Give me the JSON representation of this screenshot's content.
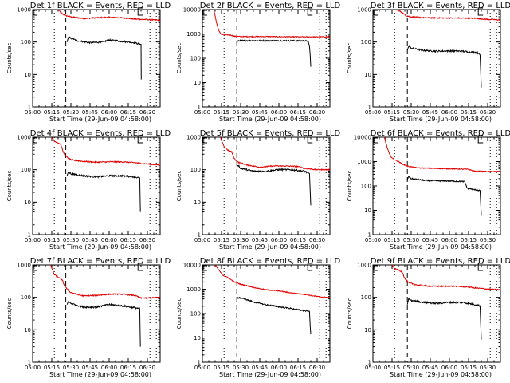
{
  "colors": {
    "events": "#000000",
    "lld": "#e00000",
    "background": "#ffffff",
    "axes": "#000000"
  },
  "common": {
    "xlabel": "Start Time (29-Jun-09 04:58:00)",
    "ylabel": "Counts/sec",
    "xticks": [
      "05:00",
      "05:15",
      "05:30",
      "05:45",
      "06:00",
      "06:15",
      "06:30"
    ],
    "xrange_minutes_from_0500": [
      0,
      100
    ],
    "markers": {
      "S_label": "S",
      "E_label": "E",
      "dotted_lines_min": [
        17,
        92
      ],
      "dotted_end_min": 97
    }
  },
  "chart_data": [
    {
      "type": "line",
      "title": "Det 1f BLACK = Events, RED = LLD",
      "ylim": [
        1,
        1000
      ],
      "yticks": [
        "1",
        "10",
        "100",
        "1000"
      ],
      "xlabel": "Start Time (29-Jun-09 04:58:00)",
      "ylabel": "Counts/sec",
      "dashed_line_min": 26,
      "S_min": 0,
      "E_min": 82,
      "series": [
        {
          "name": "LLD",
          "color": "red",
          "x": [
            20,
            23,
            26,
            30,
            40,
            50,
            60,
            70,
            80,
            90,
            100
          ],
          "values": [
            1000,
            750,
            650,
            600,
            530,
            560,
            580,
            560,
            510,
            490,
            470
          ]
        },
        {
          "name": "Events",
          "color": "black",
          "x": [
            27,
            28,
            35,
            45,
            55,
            60,
            70,
            80,
            84,
            85,
            85.2
          ],
          "values": [
            100,
            140,
            110,
            95,
            100,
            115,
            105,
            95,
            85,
            85,
            7
          ]
        }
      ]
    },
    {
      "type": "line",
      "title": "Det 2f BLACK = Events, RED = LLD",
      "ylim": [
        1,
        10000
      ],
      "yticks": [
        "1",
        "10",
        "100",
        "1000",
        "10000"
      ],
      "xlabel": "Start Time (29-Jun-09 04:58:00)",
      "ylabel": "Counts/sec",
      "dashed_line_min": 27,
      "S_min": 0,
      "E_min": 82,
      "series": [
        {
          "name": "LLD",
          "color": "red",
          "x": [
            9,
            11,
            13,
            15,
            18,
            22,
            25,
            30,
            50,
            70,
            90,
            100
          ],
          "values": [
            10000,
            3000,
            1300,
            950,
            920,
            900,
            800,
            780,
            780,
            760,
            760,
            760
          ]
        },
        {
          "name": "Events",
          "color": "black",
          "x": [
            27,
            27.5,
            28,
            40,
            60,
            80,
            83,
            84,
            84.5,
            85
          ],
          "values": [
            400,
            500,
            530,
            530,
            530,
            520,
            500,
            300,
            150,
            45
          ]
        }
      ]
    },
    {
      "type": "line",
      "title": "Det 3f BLACK = Events, RED = LLD",
      "ylim": [
        1,
        1000
      ],
      "yticks": [
        "1",
        "10",
        "100",
        "1000"
      ],
      "xlabel": "Start Time (29-Jun-09 04:58:00)",
      "ylabel": "Counts/sec",
      "dashed_line_min": 27,
      "S_min": 0,
      "E_min": 82,
      "series": [
        {
          "name": "LLD",
          "color": "red",
          "x": [
            17,
            20,
            23,
            26,
            30,
            40,
            60,
            80,
            90,
            100
          ],
          "values": [
            1000,
            950,
            800,
            650,
            600,
            560,
            550,
            540,
            500,
            480
          ]
        },
        {
          "name": "Events",
          "color": "black",
          "x": [
            27,
            28,
            30,
            40,
            50,
            60,
            70,
            80,
            83,
            84,
            84.5,
            85
          ],
          "values": [
            55,
            75,
            65,
            55,
            52,
            53,
            52,
            48,
            45,
            40,
            13,
            4
          ]
        }
      ]
    },
    {
      "type": "line",
      "title": "Det 4f BLACK = Events, RED = LLD",
      "ylim": [
        1,
        1000
      ],
      "yticks": [
        "1",
        "10",
        "100",
        "1000"
      ],
      "xlabel": "Start Time (29-Jun-09 04:58:00)",
      "ylabel": "Counts/sec",
      "dashed_line_min": 26,
      "S_min": 0,
      "E_min": 82,
      "series": [
        {
          "name": "LLD",
          "color": "red",
          "x": [
            15,
            17,
            20,
            22,
            24,
            26,
            30,
            40,
            50,
            60,
            70,
            80,
            90,
            100
          ],
          "values": [
            1000,
            750,
            680,
            600,
            350,
            260,
            200,
            180,
            170,
            175,
            175,
            165,
            150,
            140
          ]
        },
        {
          "name": "Events",
          "color": "black",
          "x": [
            27,
            28,
            30,
            40,
            50,
            60,
            70,
            80,
            84,
            84.5
          ],
          "values": [
            65,
            85,
            75,
            65,
            60,
            65,
            65,
            60,
            55,
            5
          ]
        }
      ]
    },
    {
      "type": "line",
      "title": "Det 5f BLACK = Events, RED = LLD",
      "ylim": [
        1,
        1000
      ],
      "yticks": [
        "1",
        "10",
        "100",
        "1000"
      ],
      "xlabel": "Start Time (29-Jun-09 04:58:00)",
      "ylabel": "Counts/sec",
      "dashed_line_min": 27,
      "S_min": 0,
      "E_min": 82,
      "series": [
        {
          "name": "LLD",
          "color": "red",
          "x": [
            14,
            17,
            20,
            23,
            25,
            28,
            35,
            45,
            55,
            65,
            75,
            80,
            90,
            100
          ],
          "values": [
            1000,
            500,
            400,
            350,
            220,
            170,
            140,
            120,
            130,
            130,
            125,
            110,
            100,
            100
          ]
        },
        {
          "name": "Events",
          "color": "black",
          "x": [
            27,
            28,
            30,
            40,
            50,
            60,
            70,
            80,
            84,
            84.5,
            85
          ],
          "values": [
            120,
            140,
            110,
            90,
            90,
            100,
            100,
            90,
            75,
            25,
            8
          ]
        }
      ]
    },
    {
      "type": "line",
      "title": "Det 6f BLACK = Events, RED = LLD",
      "ylim": [
        1,
        10000
      ],
      "yticks": [
        "1",
        "10",
        "100",
        "1000",
        "10000"
      ],
      "xlabel": "Start Time (29-Jun-09 04:58:00)",
      "ylabel": "Counts/sec",
      "dashed_line_min": 27,
      "S_min": 0,
      "E_min": 82,
      "series": [
        {
          "name": "LLD",
          "color": "red",
          "x": [
            9,
            11,
            13,
            15,
            17,
            20,
            23,
            27,
            35,
            50,
            65,
            75,
            80,
            90,
            100
          ],
          "values": [
            10000,
            4000,
            2000,
            1400,
            1200,
            1000,
            800,
            650,
            550,
            520,
            500,
            480,
            400,
            390,
            390
          ]
        },
        {
          "name": "Events",
          "color": "black",
          "x": [
            27,
            28,
            30,
            40,
            50,
            60,
            72,
            74,
            80,
            84,
            84.5,
            85
          ],
          "values": [
            180,
            250,
            200,
            170,
            160,
            160,
            150,
            80,
            70,
            65,
            20,
            6
          ]
        }
      ]
    },
    {
      "type": "line",
      "title": "Det 7f BLACK = Events, RED = LLD",
      "ylim": [
        1,
        1000
      ],
      "yticks": [
        "1",
        "10",
        "100",
        "1000"
      ],
      "xlabel": "Start Time (29-Jun-09 04:58:00)",
      "ylabel": "Counts/sec",
      "dashed_line_min": 26,
      "S_min": 0,
      "E_min": 82,
      "series": [
        {
          "name": "LLD",
          "color": "red",
          "x": [
            14,
            17,
            20,
            23,
            25,
            27,
            30,
            40,
            50,
            60,
            70,
            80,
            85,
            90,
            100
          ],
          "values": [
            1000,
            500,
            420,
            350,
            230,
            180,
            140,
            110,
            115,
            125,
            125,
            115,
            95,
            95,
            100
          ]
        },
        {
          "name": "Events",
          "color": "black",
          "x": [
            27,
            28,
            30,
            40,
            50,
            60,
            70,
            80,
            84,
            84.5
          ],
          "values": [
            60,
            75,
            65,
            50,
            50,
            60,
            55,
            48,
            45,
            3
          ]
        }
      ]
    },
    {
      "type": "line",
      "title": "Det 8f BLACK = Events, RED = LLD",
      "ylim": [
        1,
        10000
      ],
      "yticks": [
        "1",
        "10",
        "100",
        "1000",
        "10000"
      ],
      "xlabel": "Start Time (29-Jun-09 04:58:00)",
      "ylabel": "Counts/sec",
      "dashed_line_min": 27,
      "S_min": 0,
      "E_min": 82,
      "series": [
        {
          "name": "LLD",
          "color": "red",
          "x": [
            10,
            13,
            16,
            20,
            25,
            30,
            40,
            50,
            60,
            70,
            80,
            90,
            100
          ],
          "values": [
            10000,
            6000,
            3800,
            3000,
            2000,
            1600,
            1200,
            950,
            850,
            700,
            620,
            500,
            450
          ]
        },
        {
          "name": "Events",
          "color": "black",
          "x": [
            27,
            28,
            32,
            40,
            50,
            60,
            70,
            80,
            84,
            84.5,
            85
          ],
          "values": [
            380,
            450,
            420,
            300,
            230,
            190,
            160,
            130,
            120,
            35,
            14
          ]
        }
      ]
    },
    {
      "type": "line",
      "title": "Det 9f BLACK = Events, RED = LLD",
      "ylim": [
        1,
        1000
      ],
      "yticks": [
        "1",
        "10",
        "100",
        "1000"
      ],
      "xlabel": "Start Time (29-Jun-09 04:58:00)",
      "ylabel": "Counts/sec",
      "dashed_line_min": 27,
      "S_min": 0,
      "E_min": 82,
      "series": [
        {
          "name": "LLD",
          "color": "red",
          "x": [
            15,
            17,
            20,
            23,
            25,
            28,
            35,
            45,
            55,
            65,
            75,
            80,
            90,
            100
          ],
          "values": [
            1000,
            750,
            700,
            600,
            380,
            280,
            240,
            220,
            220,
            220,
            210,
            195,
            180,
            170
          ]
        },
        {
          "name": "Events",
          "color": "black",
          "x": [
            27,
            28,
            30,
            40,
            50,
            60,
            70,
            80,
            84,
            84.5,
            85
          ],
          "values": [
            60,
            90,
            80,
            70,
            65,
            70,
            70,
            60,
            55,
            16,
            5
          ]
        }
      ]
    }
  ]
}
